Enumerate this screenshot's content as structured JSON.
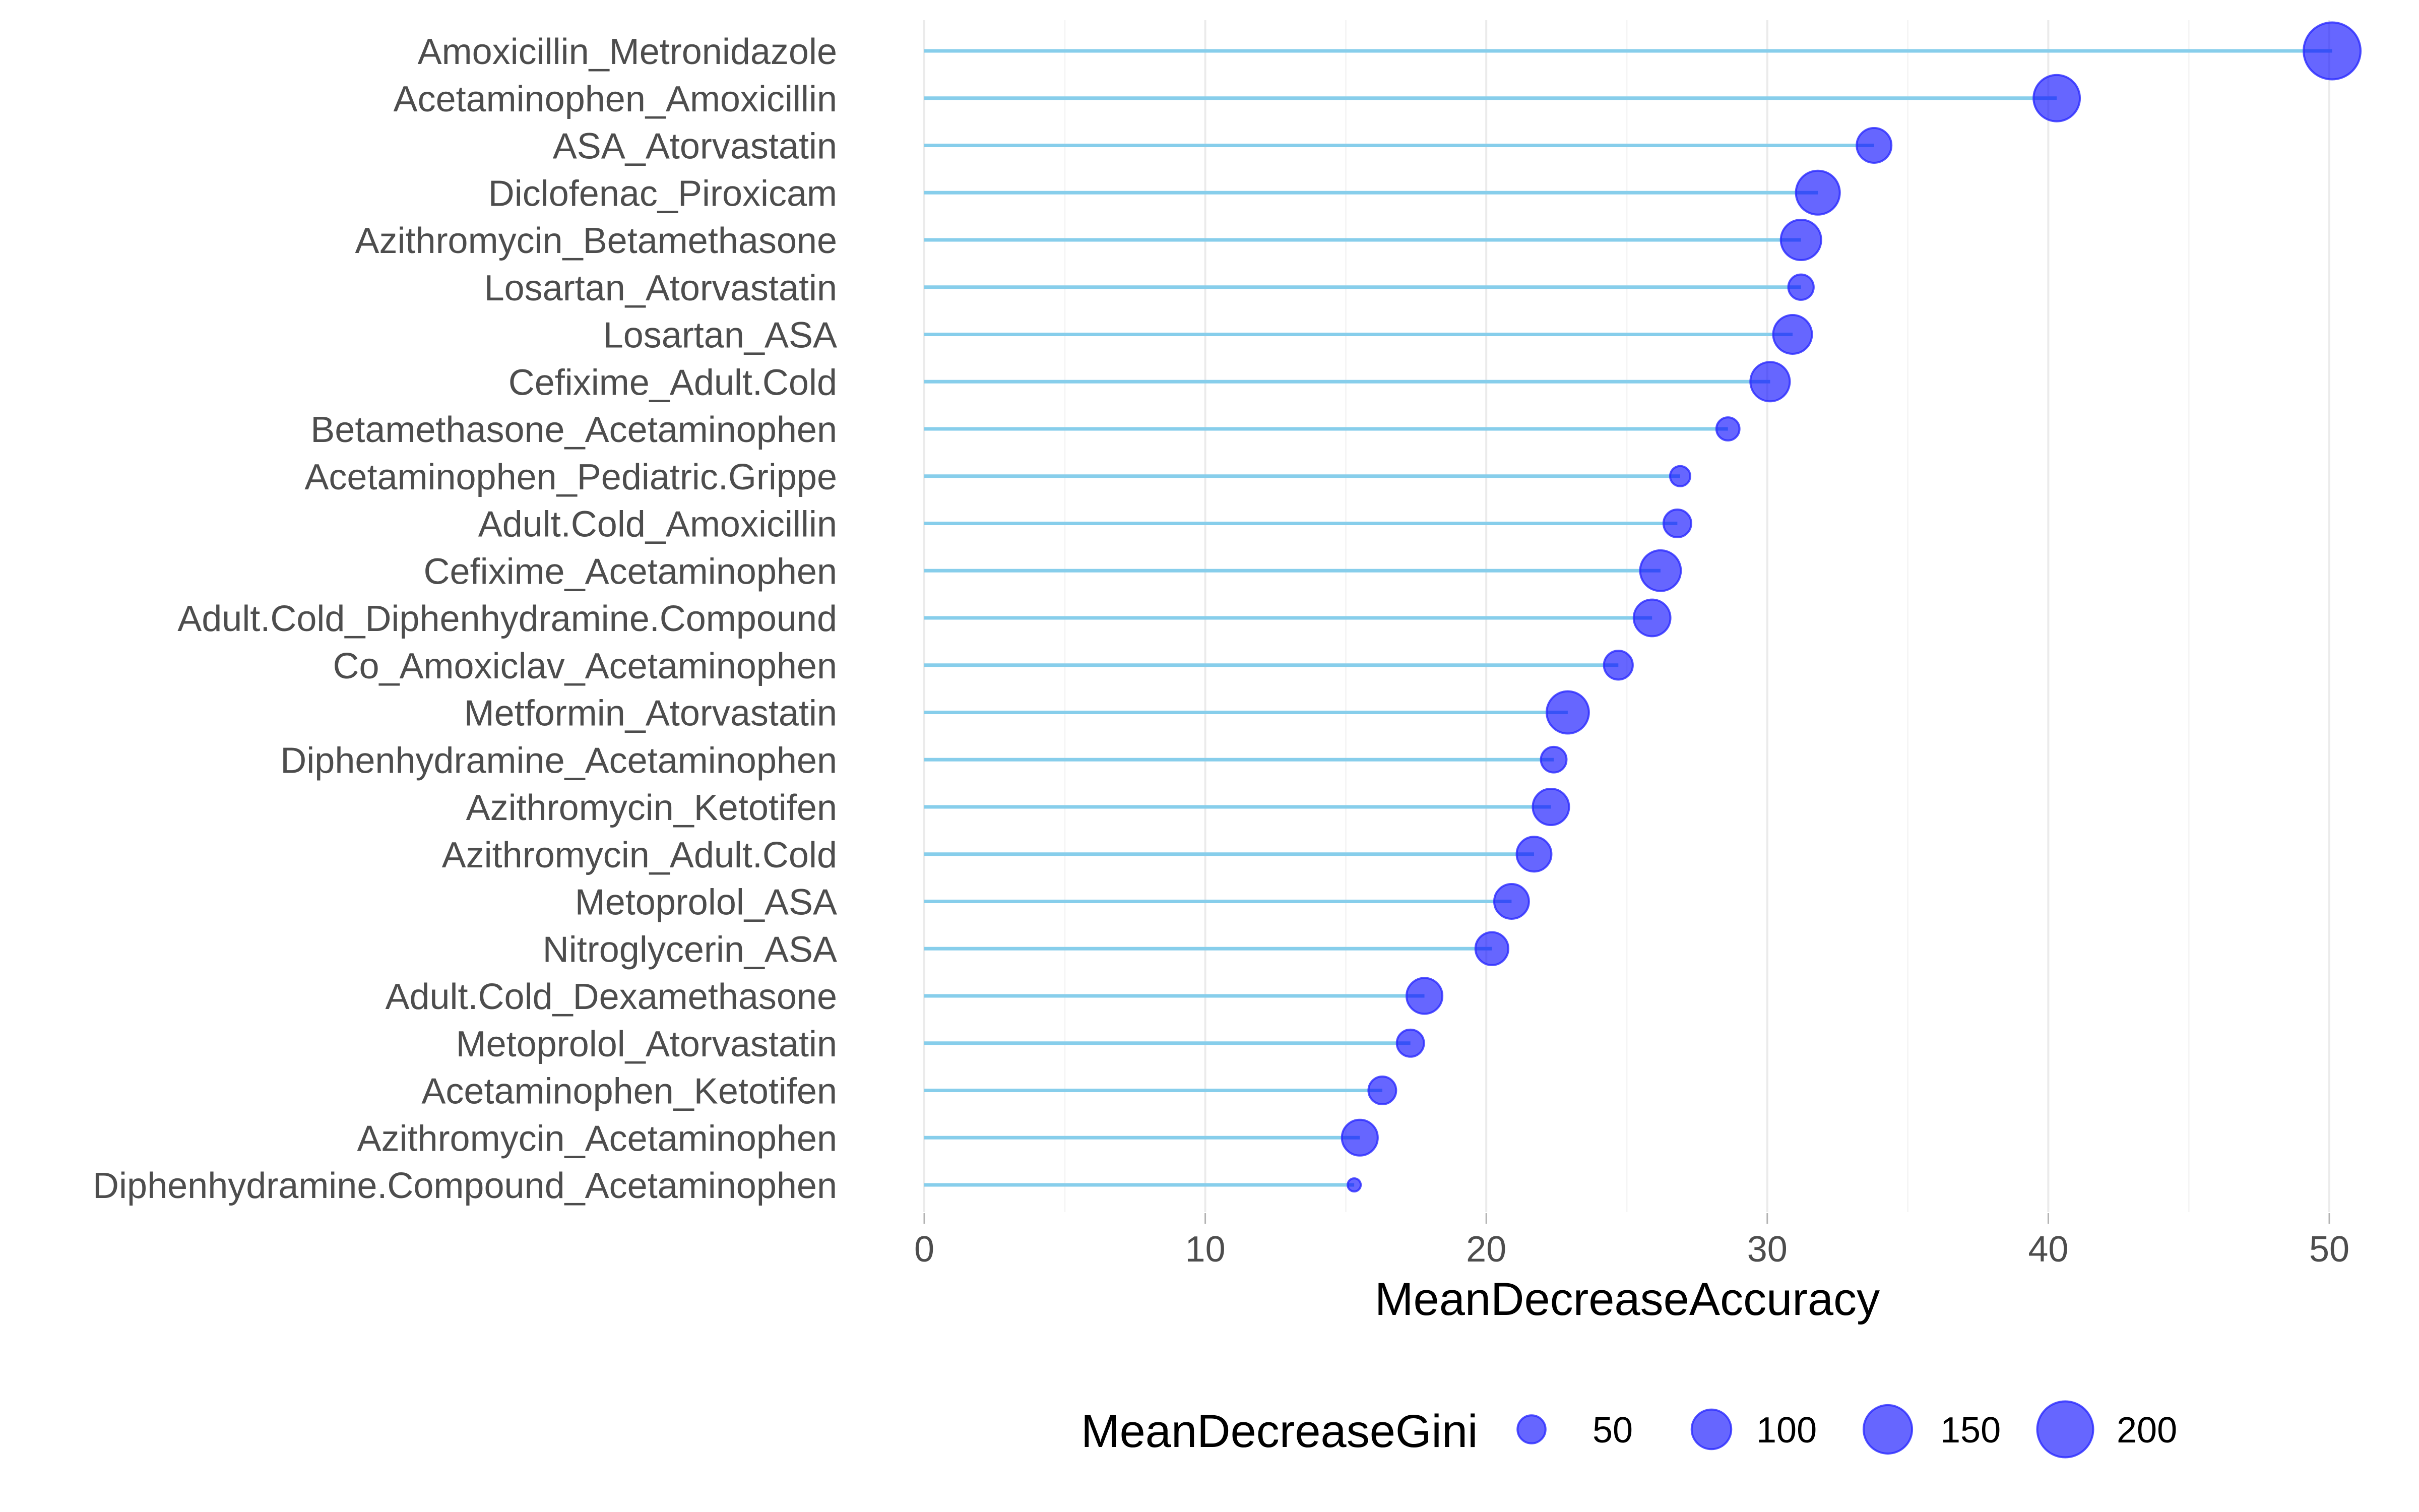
{
  "chart_data": {
    "type": "lollipop",
    "title": "",
    "xlabel": "MeanDecreaseAccuracy",
    "ylabel": "",
    "xlim": [
      0,
      50
    ],
    "x_ticks": [
      0,
      10,
      20,
      30,
      40,
      50
    ],
    "x_tick_labels": [
      "0",
      "10",
      "20",
      "30",
      "40",
      "50"
    ],
    "x_minor_gridlines": [
      5,
      15,
      25,
      35,
      45
    ],
    "grid": true,
    "size_legend": {
      "title": "MeanDecreaseGini",
      "placement": "bottom",
      "breaks": [
        50,
        100,
        150,
        200
      ],
      "labels": [
        "50",
        "100",
        "150",
        "200"
      ]
    },
    "colors": {
      "stem": "#87CEEB",
      "point_fill": "#0000FF",
      "point_fill_opacity": 0.6,
      "point_stroke": "#2B2BFF",
      "gridline_major": "#EBEBEB",
      "gridline_minor": "#F5F5F5",
      "tick": "#B3B3B3"
    },
    "categories": [
      "Amoxicillin_Metronidazole",
      "Acetaminophen_Amoxicillin",
      "ASA_Atorvastatin",
      "Diclofenac_Piroxicam",
      "Azithromycin_Betamethasone",
      "Losartan_Atorvastatin",
      "Losartan_ASA",
      "Cefixime_Adult.Cold",
      "Betamethasone_Acetaminophen",
      "Acetaminophen_Pediatric.Grippe",
      "Adult.Cold_Amoxicillin",
      "Cefixime_Acetaminophen",
      "Adult.Cold_Diphenhydramine.Compound",
      "Co_Amoxiclav_Acetaminophen",
      "Metformin_Atorvastatin",
      "Diphenhydramine_Acetaminophen",
      "Azithromycin_Ketotifen",
      "Azithromycin_Adult.Cold",
      "Metoprolol_ASA",
      "Nitroglycerin_ASA",
      "Adult.Cold_Dexamethasone",
      "Metoprolol_Atorvastatin",
      "Acetaminophen_Ketotifen",
      "Azithromycin_Acetaminophen",
      "Diphenhydramine.Compound_Acetaminophen"
    ],
    "series": [
      {
        "name": "MeanDecreaseAccuracy",
        "values": [
          50.1,
          40.3,
          33.8,
          31.8,
          31.2,
          31.2,
          30.9,
          30.1,
          28.6,
          26.9,
          26.8,
          26.2,
          25.9,
          24.7,
          22.9,
          22.4,
          22.3,
          21.7,
          20.9,
          20.2,
          17.8,
          17.3,
          16.3,
          15.5,
          15.3
        ]
      },
      {
        "name": "MeanDecreaseGini",
        "values": [
          207,
          137,
          77,
          123,
          104,
          41,
          96,
          99,
          34,
          26,
          49,
          106,
          86,
          53,
          114,
          42,
          84,
          77,
          77,
          69,
          82,
          47,
          49,
          82,
          11
        ]
      }
    ]
  }
}
